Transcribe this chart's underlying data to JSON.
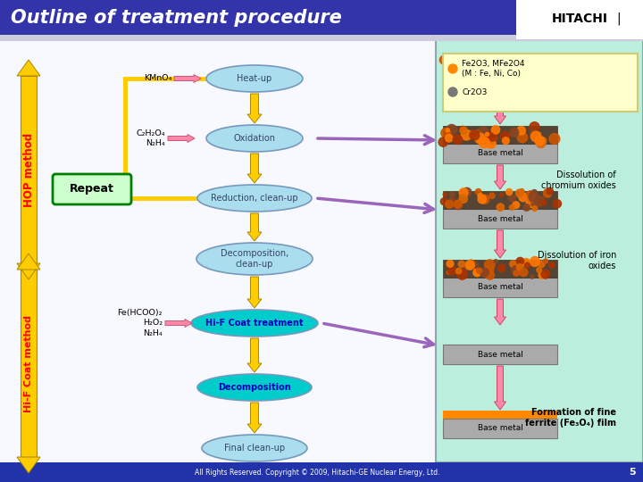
{
  "title": "Outline of treatment procedure",
  "title_color": "#FFFFFF",
  "title_bg": "#3333AA",
  "background": "#DDEEFF",
  "footer_bg": "#2233AA",
  "footer_text": "All Rights Reserved. Copyright © 2009, Hitachi-GE Nuclear Energy, Ltd.",
  "footer_page": "5",
  "hop_method_label": "HOP method",
  "hif_coat_label": "Hi-F Coat method",
  "steps": [
    "Heat-up",
    "Oxidation",
    "Reduction, clean-up",
    "Decomposition,\nclean-up",
    "Hi-F Coat treatment",
    "Decomposition",
    "Final clean-up"
  ],
  "step_colors": [
    "#AADDEE",
    "#AADDEE",
    "#AADDEE",
    "#AADDEE",
    "#00CCCC",
    "#00CCCC",
    "#AADDEE"
  ],
  "step_text_colors": [
    "#334466",
    "#334466",
    "#334466",
    "#334466",
    "#0000BB",
    "#0000BB",
    "#334466"
  ],
  "step_bold": [
    false,
    false,
    false,
    false,
    true,
    true,
    false
  ],
  "legend_text1": "Fe2O3, MFe2O4\n(M : Fe, Ni, Co)",
  "legend_text2": "Cr2O3",
  "repeat_label": "Repeat",
  "arrow_yellow": "#FFCC00",
  "arrow_pink": "#FF88AA",
  "arrow_purple": "#9966BB",
  "right_bg": "#BBEEDD",
  "right_border": "#88AABB"
}
